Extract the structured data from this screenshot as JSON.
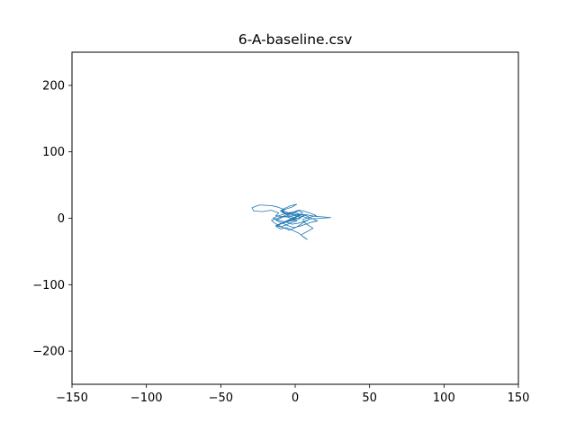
{
  "chart_data": {
    "type": "line",
    "title": "6-A-baseline.csv",
    "xlabel": "",
    "ylabel": "",
    "xlim": [
      -150,
      150
    ],
    "ylim": [
      -250,
      250
    ],
    "x_ticks": [
      -150,
      -100,
      -50,
      0,
      50,
      100,
      150
    ],
    "y_ticks": [
      -200,
      -100,
      0,
      100,
      200
    ],
    "x_tick_labels": [
      "−150",
      "−100",
      "−50",
      "0",
      "50",
      "100",
      "150"
    ],
    "y_tick_labels": [
      "−200",
      "−100",
      "0",
      "100",
      "200"
    ],
    "grid": false,
    "series": [
      {
        "color": "#1f77b4",
        "x": [
          0,
          -4,
          -9,
          -7,
          -12,
          -16,
          -24,
          -29,
          -28,
          -22,
          -16,
          -11,
          -13,
          -8,
          -3,
          2,
          8,
          13,
          19,
          24,
          17,
          10,
          6,
          9,
          12,
          8,
          4,
          6,
          8,
          5,
          2,
          -2,
          -6,
          -10,
          -13,
          -9,
          -5,
          -1,
          3,
          6,
          2,
          -3,
          -8,
          -12,
          -15,
          -11,
          -6,
          -2,
          3,
          7,
          10,
          6,
          1,
          -4,
          -9,
          -6,
          -2,
          1,
          -3,
          -7,
          -10,
          -5,
          0,
          4,
          2,
          -5,
          -9,
          -13,
          -10,
          -6,
          -3,
          1,
          -2,
          -6,
          -4,
          0,
          3,
          7,
          11,
          14,
          9,
          5,
          6,
          4,
          1,
          -4,
          -7,
          -11,
          -14,
          -16,
          -12,
          -8,
          -5,
          -2,
          2,
          5,
          3,
          0,
          -3,
          -6,
          -9,
          -12,
          -8,
          -5,
          -2,
          1,
          4,
          7,
          10,
          13,
          15,
          11,
          7,
          3,
          -1,
          -5,
          -9,
          -13,
          -10,
          -7,
          -4,
          -1,
          2,
          0
        ],
        "y": [
          0,
          4,
          9,
          13,
          17,
          19,
          20,
          16,
          11,
          10,
          12,
          8,
          4,
          2,
          3,
          6,
          5,
          3,
          2,
          1,
          0,
          -1,
          -6,
          -11,
          -15,
          -20,
          -25,
          -29,
          -32,
          -27,
          -22,
          -18,
          -14,
          -16,
          -12,
          -8,
          -5,
          -2,
          1,
          4,
          7,
          9,
          6,
          3,
          0,
          -3,
          -6,
          -9,
          -7,
          -4,
          -1,
          2,
          5,
          8,
          11,
          14,
          17,
          21,
          19,
          15,
          11,
          7,
          4,
          1,
          -2,
          -5,
          -8,
          -11,
          -13,
          -10,
          -7,
          -4,
          -1,
          3,
          6,
          9,
          12,
          10,
          7,
          4,
          1,
          -2,
          -5,
          -9,
          -13,
          -18,
          -15,
          -11,
          -7,
          -3,
          0,
          3,
          6,
          9,
          12,
          8,
          4,
          1,
          -2,
          -5,
          -8,
          -10,
          -6,
          -3,
          0,
          3,
          6,
          4,
          1,
          -2,
          -4,
          -6,
          -9,
          -12,
          -14,
          -11,
          -7,
          -3,
          0,
          3,
          1,
          -1,
          0,
          0
        ]
      }
    ]
  }
}
